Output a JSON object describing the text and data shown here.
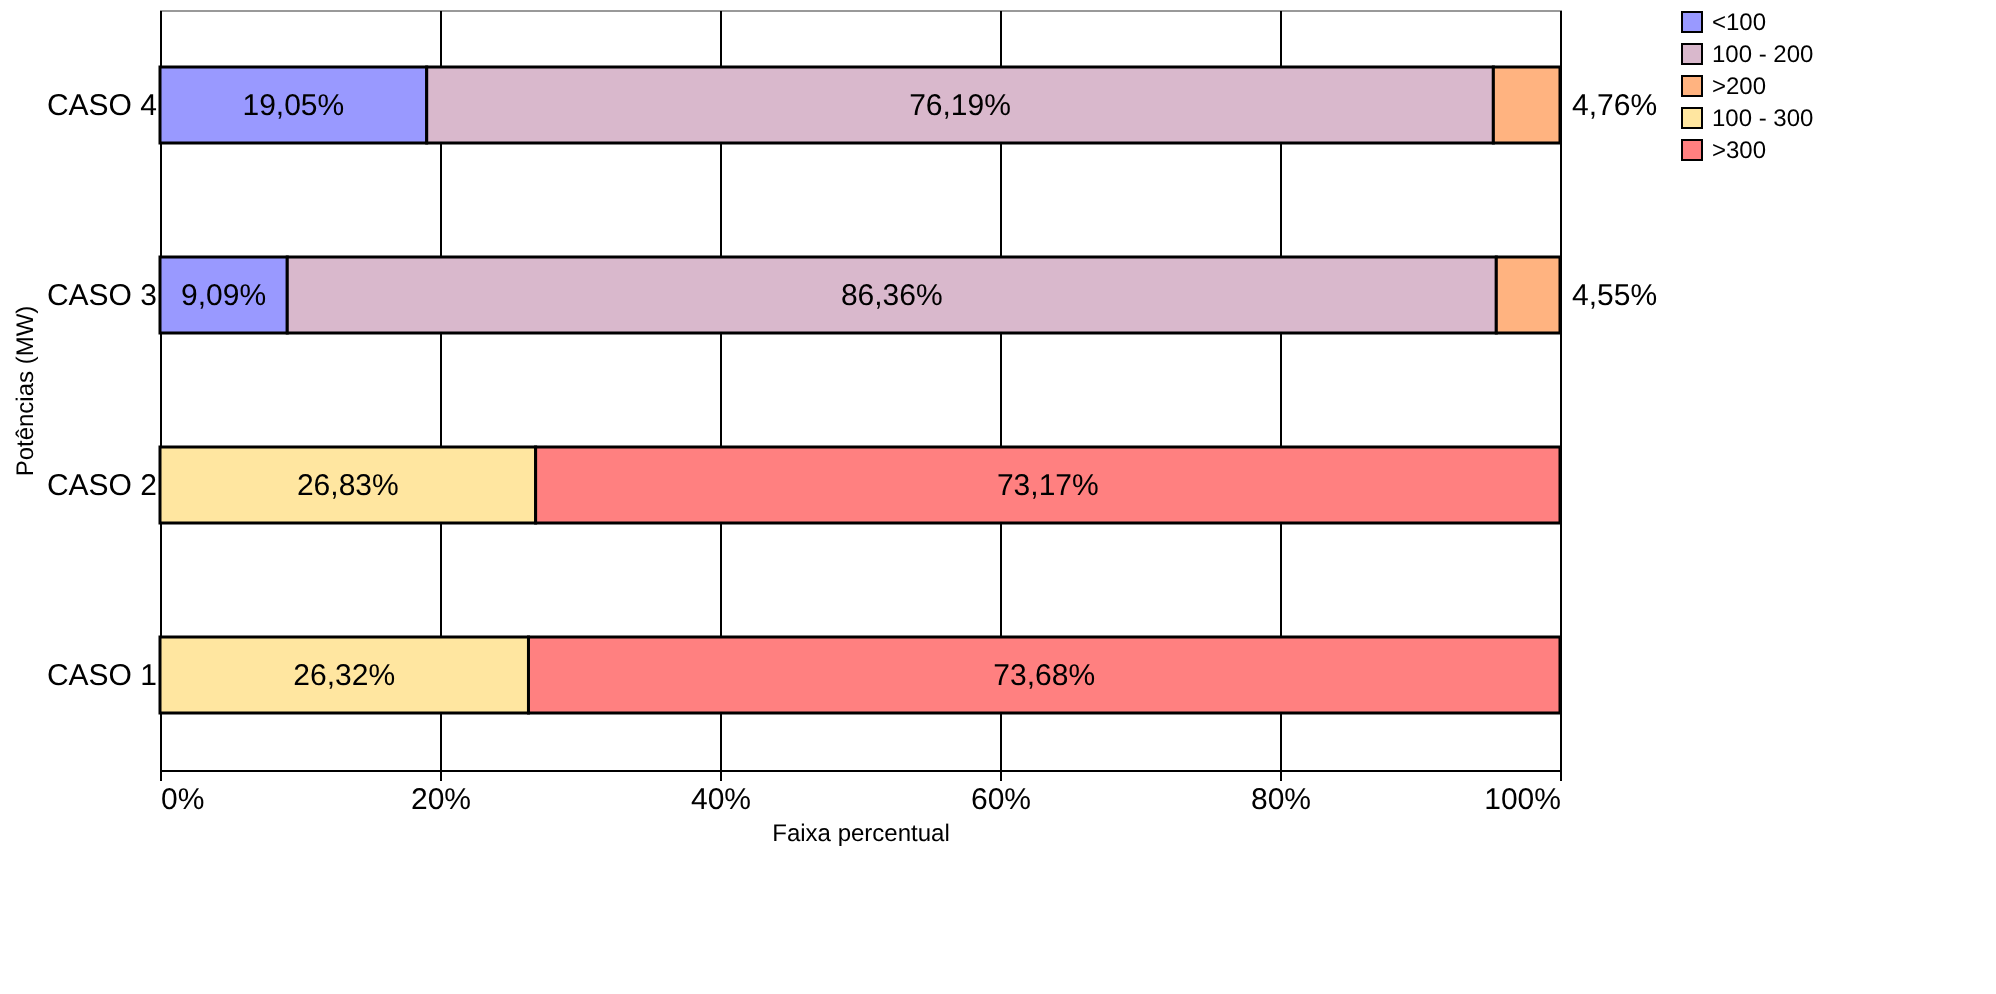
{
  "chart_data": {
    "type": "bar",
    "orientation": "horizontal",
    "stacked": true,
    "categories": [
      "CASO 4",
      "CASO 3",
      "CASO 2",
      "CASO 1"
    ],
    "series": [
      {
        "name": "<100",
        "color": "#9999ff",
        "values": [
          19.05,
          9.09,
          null,
          null
        ],
        "value_labels": [
          "19,05%",
          "9,09%",
          null,
          null
        ]
      },
      {
        "name": "100 - 200",
        "color": "#d9b8cc",
        "values": [
          76.19,
          86.36,
          null,
          null
        ],
        "value_labels": [
          "76,19%",
          "86,36%",
          null,
          null
        ]
      },
      {
        "name": ">200",
        "color": "#ffb380",
        "values": [
          4.76,
          4.55,
          null,
          null
        ],
        "value_labels": [
          "4,76%",
          "4,55%",
          null,
          null
        ]
      },
      {
        "name": "100 - 300",
        "color": "#ffe6a0",
        "values": [
          null,
          null,
          26.83,
          26.32
        ],
        "value_labels": [
          null,
          null,
          "26,83%",
          "26,32%"
        ]
      },
      {
        "name": ">300",
        "color": "#ff8080",
        "values": [
          null,
          null,
          73.17,
          73.68
        ],
        "value_labels": [
          null,
          null,
          "73,17%",
          "73,68%"
        ]
      }
    ],
    "xlim": [
      0,
      100
    ],
    "xticks": [
      {
        "value": 0,
        "label": "0%"
      },
      {
        "value": 20,
        "label": "20%"
      },
      {
        "value": 40,
        "label": "40%"
      },
      {
        "value": 60,
        "label": "60%"
      },
      {
        "value": 80,
        "label": "80%"
      },
      {
        "value": 100,
        "label": "100%"
      }
    ],
    "xlabel": "Faixa percentual",
    "ylabel": "Potências (MW)",
    "grid": "x",
    "legend": "right"
  }
}
